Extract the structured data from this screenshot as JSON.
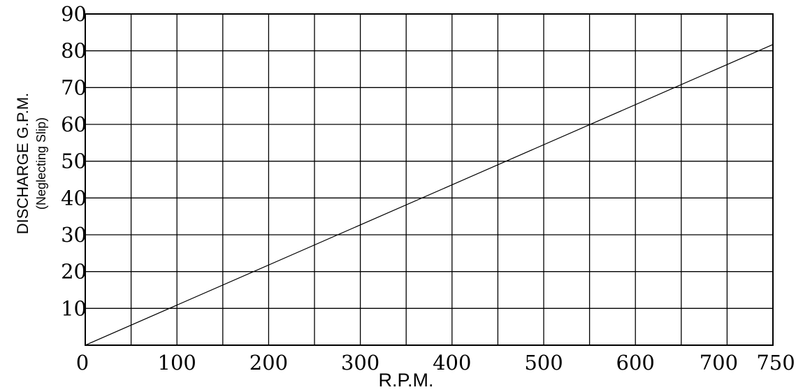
{
  "chart_data": {
    "type": "line",
    "title": "",
    "xlabel": "R.P.M.",
    "ylabel": "DISCHARGE G.P.M.",
    "ylabel_sub": "(Neglecting Slip)",
    "xlim": [
      0,
      750
    ],
    "ylim": [
      0,
      90
    ],
    "grid": true,
    "x_grid_step": 50,
    "y_grid_step": 10,
    "x_ticks": [
      0,
      100,
      200,
      300,
      400,
      500,
      600,
      700,
      750
    ],
    "x_tick_labels": [
      "0",
      "100",
      "200",
      "300",
      "400",
      "500",
      "600",
      "700",
      "750"
    ],
    "y_ticks": [
      10,
      20,
      30,
      40,
      50,
      60,
      70,
      80,
      90
    ],
    "y_tick_labels": [
      "10",
      "20",
      "30",
      "40",
      "50",
      "60",
      "70",
      "80",
      "90"
    ],
    "series": [
      {
        "x": [
          0,
          750
        ],
        "values": [
          0,
          81.7
        ],
        "color": "#000000"
      }
    ]
  }
}
